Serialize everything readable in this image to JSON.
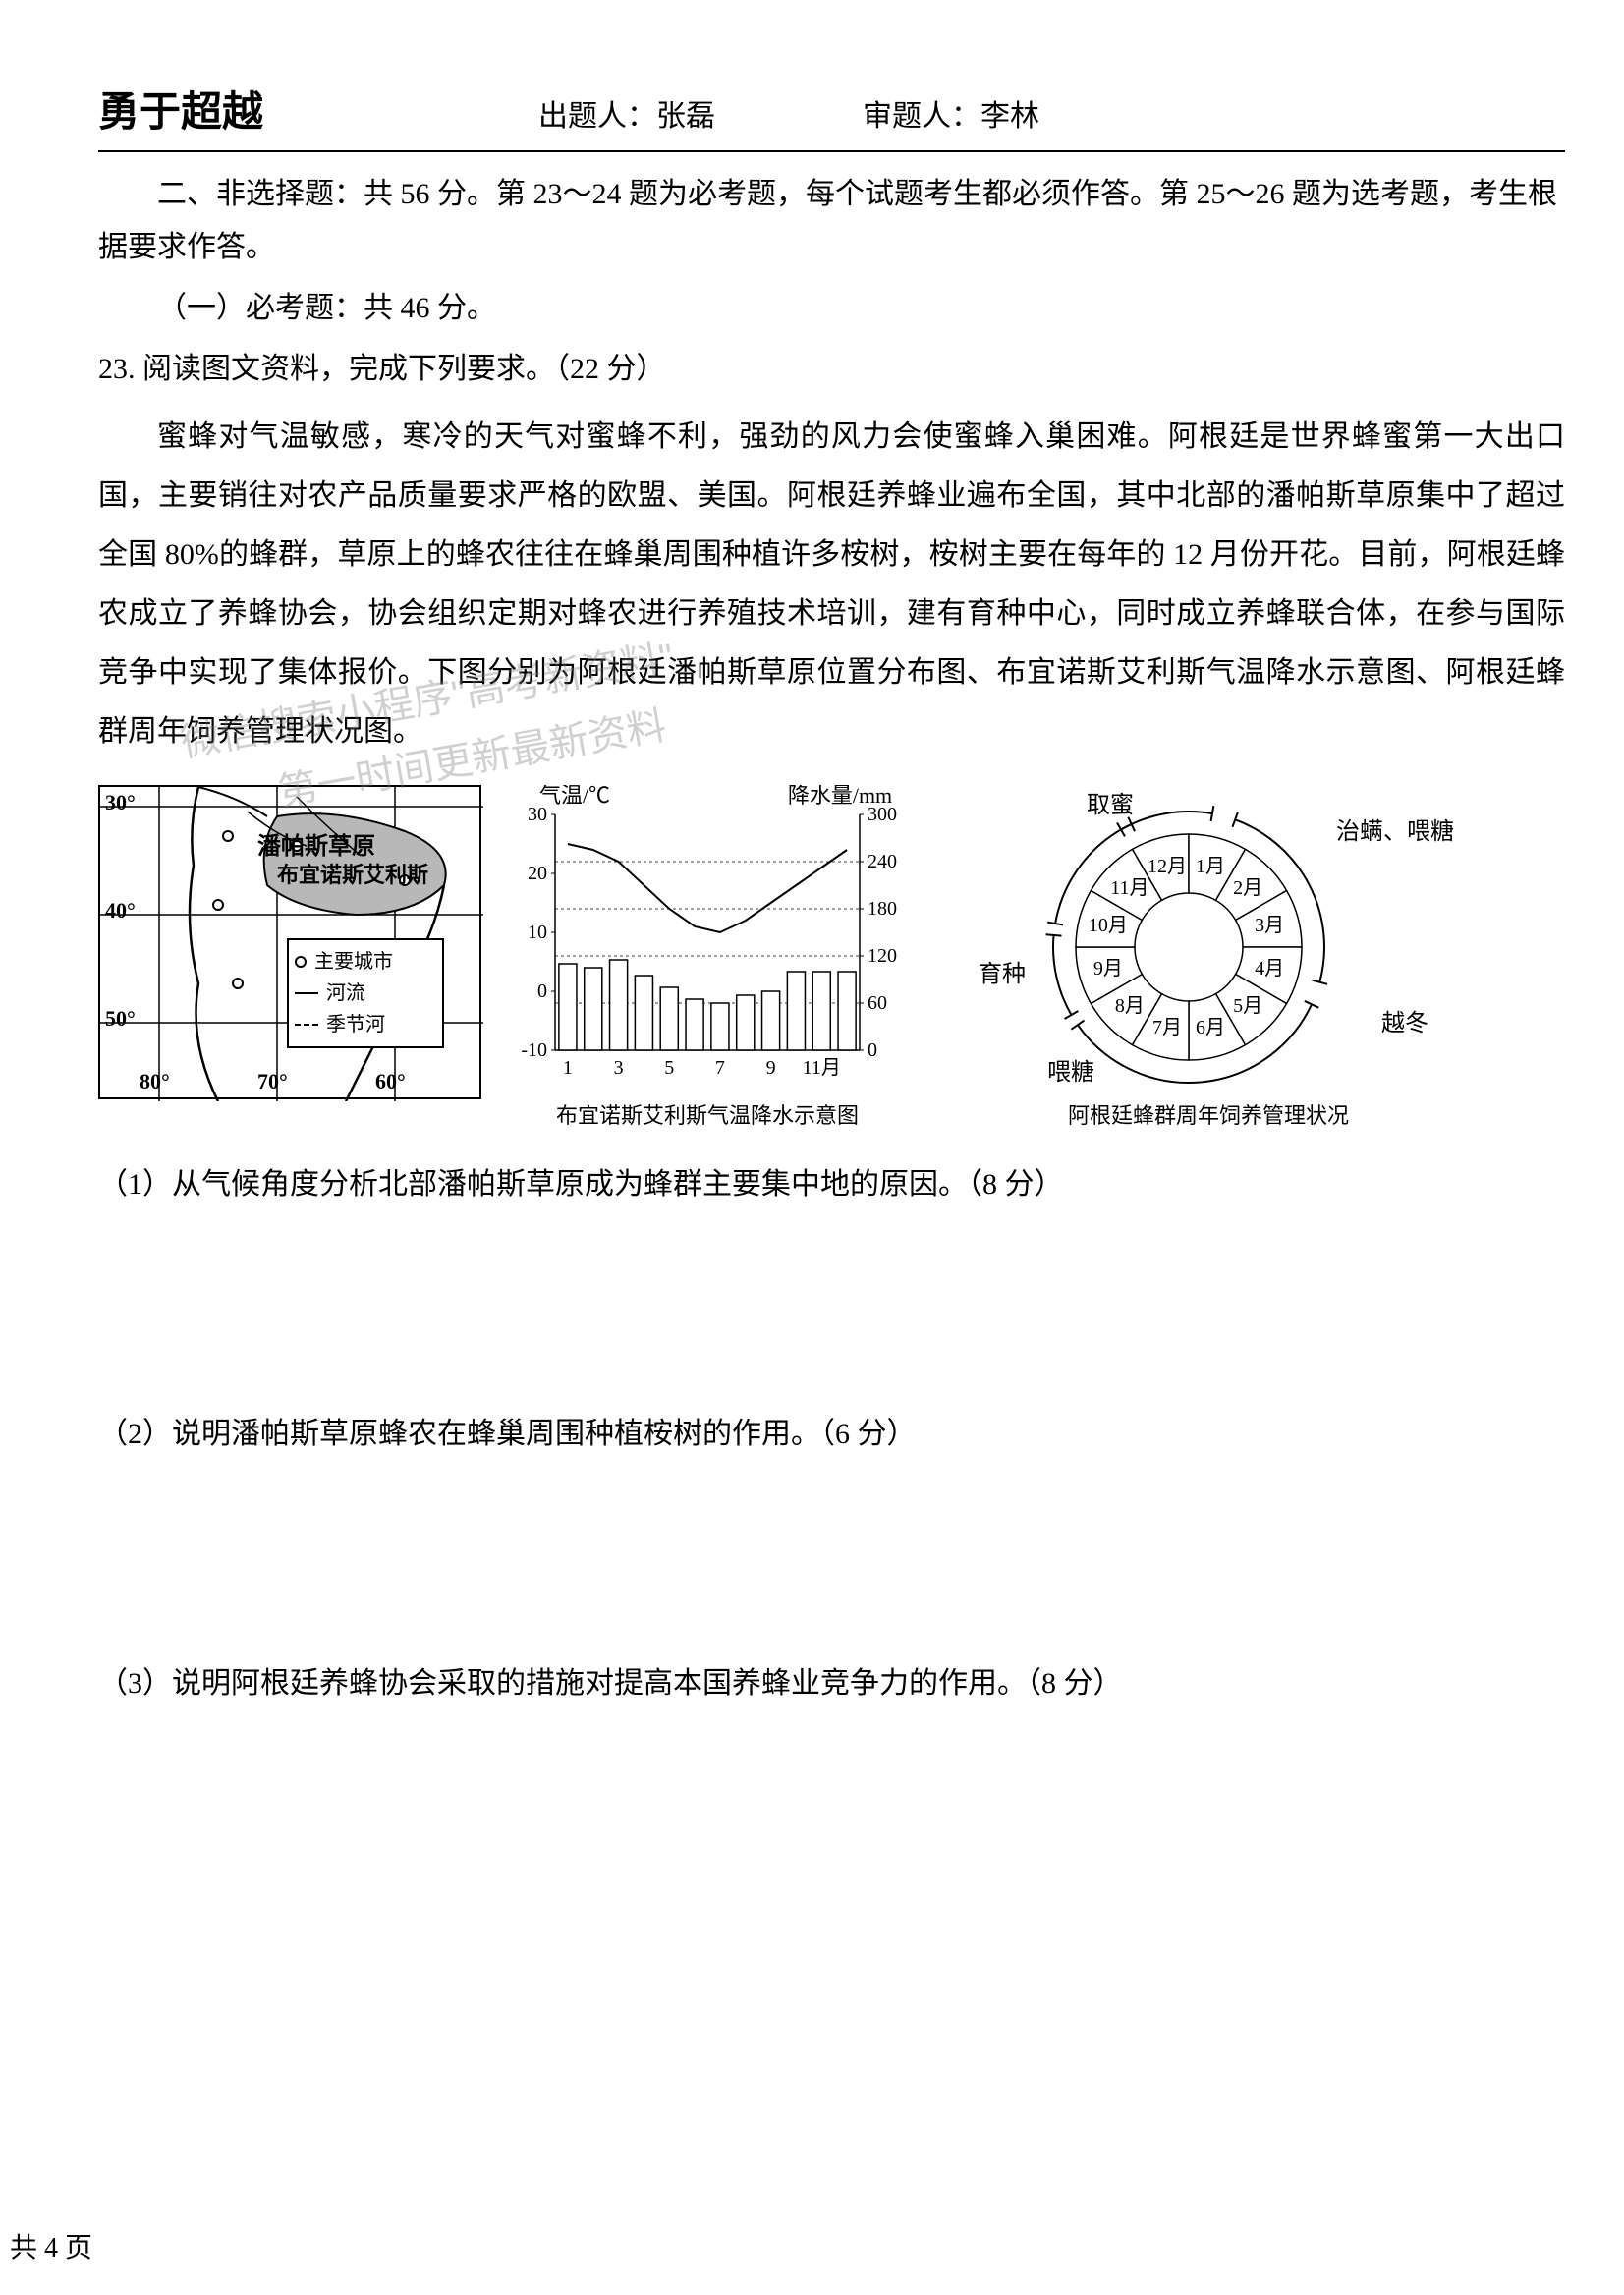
{
  "header": {
    "title": "勇于超越",
    "author_label": "出题人：",
    "author_name": "张磊",
    "reviewer_label": "审题人：",
    "reviewer_name": "李林"
  },
  "section_intro": "二、非选择题：共 56 分。第 23～24 题为必考题，每个试题考生都必须作答。第 25～26 题为选考题，考生根据要求作答。",
  "sub_section": "（一）必考题：共 46 分。",
  "question_23": {
    "number": "23. 阅读图文资料，完成下列要求。（22 分）",
    "passage": "蜜蜂对气温敏感，寒冷的天气对蜜蜂不利，强劲的风力会使蜜蜂入巢困难。阿根廷是世界蜂蜜第一大出口国，主要销往对农产品质量要求严格的欧盟、美国。阿根廷养蜂业遍布全国，其中北部的潘帕斯草原集中了超过全国 80%的蜂群，草原上的蜂农往往在蜂巢周围种植许多桉树，桉树主要在每年的 12 月份开花。目前，阿根廷蜂农成立了养蜂协会，协会组织定期对蜂农进行养殖技术培训，建有育种中心，同时成立养蜂联合体，在参与国际竞争中实现了集体报价。下图分别为阿根廷潘帕斯草原位置分布图、布宜诺斯艾利斯气温降水示意图、阿根廷蜂群周年饲养管理状况图。",
    "sub_q1": "（1）从气候角度分析北部潘帕斯草原成为蜂群主要集中地的原因。（8 分）",
    "sub_q2": "（2）说明潘帕斯草原蜂农在蜂巢周围种植桉树的作用。（6 分）",
    "sub_q3": "（3）说明阿根廷养蜂协会采取的措施对提高本国养蜂业竞争力的作用。（8 分）"
  },
  "map": {
    "region_label": "潘帕斯草原",
    "city_label": "布宜诺斯艾利斯",
    "legend_city": "主要城市",
    "legend_river": "河流",
    "legend_seasonal": "季节河",
    "lat_labels": [
      "30°",
      "40°",
      "50°"
    ],
    "lon_labels": [
      "80°",
      "70°",
      "60°"
    ],
    "colors": {
      "border": "#000000",
      "shade": "#b8b8b8",
      "background": "#ffffff"
    }
  },
  "chart": {
    "title_left": "气温/℃",
    "title_right": "降水量/mm",
    "caption": "布宜诺斯艾利斯气温降水示意图",
    "temp_yticks": [
      -10,
      0,
      10,
      20,
      30
    ],
    "precip_yticks": [
      0,
      60,
      120,
      180,
      240,
      300
    ],
    "x_labels": [
      "1",
      "3",
      "5",
      "7",
      "9",
      "11月"
    ],
    "months": [
      1,
      2,
      3,
      4,
      5,
      6,
      7,
      8,
      9,
      10,
      11,
      12
    ],
    "temperature": [
      25,
      24,
      22,
      18,
      14,
      11,
      10,
      12,
      15,
      18,
      21,
      24
    ],
    "precipitation": [
      110,
      105,
      115,
      95,
      80,
      65,
      60,
      70,
      75,
      100,
      100,
      100
    ],
    "colors": {
      "axis": "#000000",
      "bar_fill": "#ffffff",
      "bar_stroke": "#000000",
      "line": "#000000",
      "background": "#ffffff"
    },
    "line_width": 2,
    "bar_width": 0.7,
    "temp_ylim": [
      -10,
      30
    ],
    "precip_ylim": [
      0,
      300
    ],
    "fontsize_axis": 20,
    "fontsize_label": 22
  },
  "cycle": {
    "caption": "阿根廷蜂群周年饲养管理状况",
    "months": [
      "1月",
      "2月",
      "3月",
      "4月",
      "5月",
      "6月",
      "7月",
      "8月",
      "9月",
      "10月",
      "11月",
      "12月"
    ],
    "activities": {
      "top_left": "取蜜",
      "top_right": "治螨、喂糖",
      "right": "越冬",
      "bottom": "喂糖",
      "left": "育种"
    },
    "colors": {
      "stroke": "#000000",
      "fill": "#ffffff"
    },
    "fontsize_month": 20,
    "fontsize_activity": 24
  },
  "footer": "共 4 页",
  "watermark": {
    "line1": "微信搜索小程序\"高考新资料\"",
    "line2": "第一时间更新最新资料"
  }
}
